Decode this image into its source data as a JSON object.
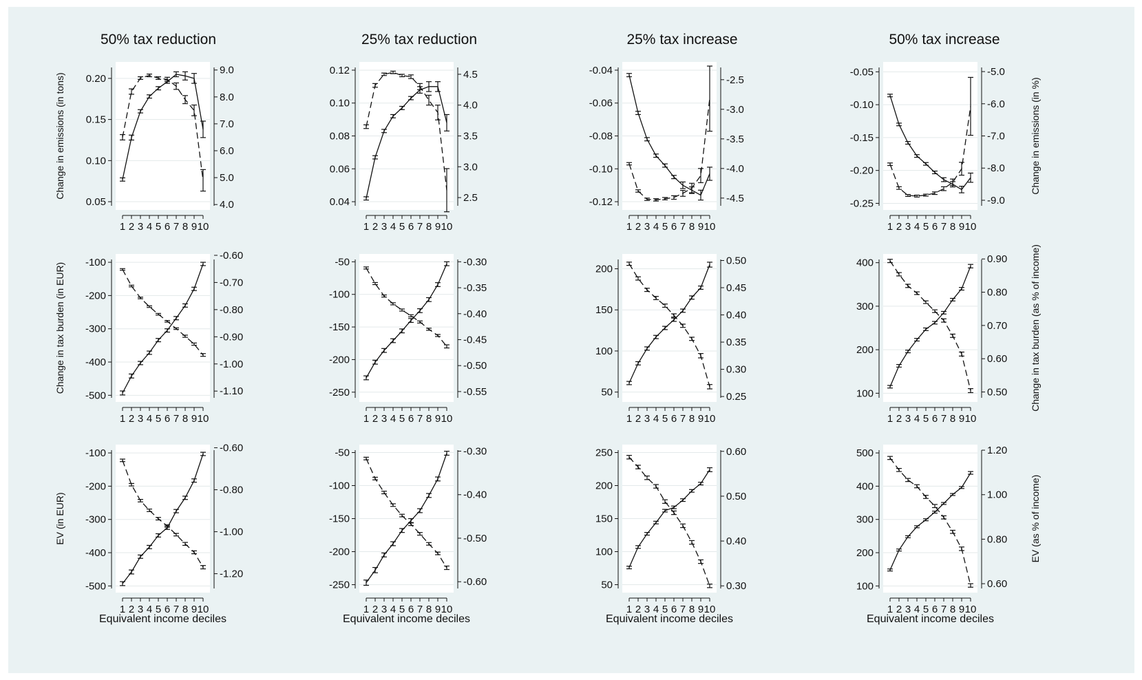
{
  "chart_data": {
    "type": "line",
    "columns": [
      "50% tax reduction",
      "25% tax reduction",
      "25% tax increase",
      "50% tax increase"
    ],
    "x": [
      1,
      2,
      3,
      4,
      5,
      6,
      7,
      8,
      9,
      10
    ],
    "xlabel": "Equivalent income deciles",
    "row_labels": {
      "left": [
        "Change in emissions (in tons)",
        "Change in tax burden (in EUR)",
        "EV (in EUR)"
      ],
      "right": [
        "Change in emissions (in %)",
        "Change in tax burden (as % of income)",
        "EV (as % of income)"
      ]
    },
    "line_styles": {
      "solid": "left axis",
      "dashed": "right axis"
    },
    "panels": [
      [
        {
          "left": {
            "ticks": [
              "0.05",
              "0.10",
              "0.15",
              "0.20"
            ],
            "ylim": [
              0.04,
              0.22
            ]
          },
          "right": {
            "ticks": [
              "4.0",
              "5.0",
              "6.0",
              "7.0",
              "8.0",
              "9.0"
            ],
            "ylim": [
              3.8,
              9.3
            ]
          },
          "solid": [
            0.077,
            0.128,
            0.16,
            0.178,
            0.188,
            0.196,
            0.205,
            0.203,
            0.2,
            0.138
          ],
          "dashed": [
            6.5,
            8.2,
            8.7,
            8.8,
            8.7,
            8.65,
            8.4,
            7.9,
            7.5,
            4.9
          ],
          "solid_err": [
            0.002,
            0.003,
            0.002,
            0.002,
            0.002,
            0.002,
            0.003,
            0.005,
            0.006,
            0.01
          ],
          "dashed_err": [
            0.1,
            0.1,
            0.05,
            0.05,
            0.05,
            0.08,
            0.12,
            0.15,
            0.2,
            0.4
          ]
        },
        {
          "left": {
            "ticks": [
              "0.04",
              "0.06",
              "0.08",
              "0.10",
              "0.12"
            ],
            "ylim": [
              0.035,
              0.125
            ]
          },
          "right": {
            "ticks": [
              "2.5",
              "3.0",
              "3.5",
              "4.0",
              "4.5"
            ],
            "ylim": [
              2.3,
              4.7
            ]
          },
          "solid": [
            0.042,
            0.067,
            0.083,
            0.092,
            0.097,
            0.103,
            0.108,
            0.11,
            0.11,
            0.088
          ],
          "dashed": [
            3.65,
            4.32,
            4.5,
            4.53,
            4.48,
            4.46,
            4.3,
            4.08,
            3.88,
            2.62
          ],
          "solid_err": [
            0.001,
            0.001,
            0.001,
            0.001,
            0.001,
            0.001,
            0.002,
            0.003,
            0.003,
            0.005
          ],
          "dashed_err": [
            0.03,
            0.03,
            0.02,
            0.02,
            0.02,
            0.03,
            0.05,
            0.08,
            0.12,
            0.35
          ]
        },
        {
          "left": {
            "ticks": [
              "-0.12",
              "-0.10",
              "-0.08",
              "-0.06",
              "-0.04"
            ],
            "ylim": [
              -0.125,
              -0.035
            ]
          },
          "right": {
            "ticks": [
              "-4.5",
              "-4.0",
              "-3.5",
              "-3.0",
              "-2.5"
            ],
            "ylim": [
              -4.7,
              -2.2
            ]
          },
          "solid": [
            -0.043,
            -0.066,
            -0.082,
            -0.092,
            -0.098,
            -0.105,
            -0.11,
            -0.113,
            -0.116,
            -0.103
          ],
          "dashed": [
            -3.92,
            -4.38,
            -4.52,
            -4.53,
            -4.51,
            -4.49,
            -4.42,
            -4.33,
            -4.12,
            -2.82
          ],
          "solid_err": [
            0.001,
            0.001,
            0.001,
            0.001,
            0.001,
            0.001,
            0.002,
            0.002,
            0.003,
            0.004
          ],
          "dashed_err": [
            0.02,
            0.02,
            0.02,
            0.02,
            0.02,
            0.03,
            0.05,
            0.08,
            0.12,
            0.55
          ]
        },
        {
          "left": {
            "ticks": [
              "-0.25",
              "-0.20",
              "-0.15",
              "-0.10",
              "-0.05"
            ],
            "ylim": [
              -0.26,
              -0.035
            ]
          },
          "right": {
            "ticks": [
              "-9.0",
              "-8.0",
              "-7.0",
              "-6.0",
              "-5.0"
            ],
            "ylim": [
              -9.3,
              -4.7
            ]
          },
          "solid": [
            -0.086,
            -0.13,
            -0.158,
            -0.178,
            -0.19,
            -0.203,
            -0.214,
            -0.221,
            -0.229,
            -0.211
          ],
          "dashed": [
            -7.88,
            -8.62,
            -8.85,
            -8.87,
            -8.84,
            -8.78,
            -8.64,
            -8.44,
            -8.02,
            -6.08
          ],
          "solid_err": [
            0.002,
            0.002,
            0.002,
            0.002,
            0.002,
            0.002,
            0.003,
            0.004,
            0.005,
            0.007
          ],
          "dashed_err": [
            0.04,
            0.04,
            0.03,
            0.03,
            0.03,
            0.04,
            0.06,
            0.1,
            0.2,
            0.9
          ]
        }
      ],
      [
        {
          "left": {
            "ticks": [
              "-500",
              "-400",
              "-300",
              "-200",
              "-100"
            ],
            "ylim": [
              -520,
              -75
            ]
          },
          "right": {
            "ticks": [
              "-1.10",
              "-1.00",
              "-0.90",
              "-0.80",
              "-0.70",
              "-0.60"
            ],
            "ylim": [
              -1.14,
              -0.595
            ]
          },
          "solid": [
            -493,
            -442,
            -403,
            -372,
            -334,
            -305,
            -268,
            -230,
            -180,
            -105
          ],
          "dashed": [
            -0.652,
            -0.713,
            -0.757,
            -0.789,
            -0.817,
            -0.843,
            -0.87,
            -0.898,
            -0.927,
            -0.967
          ],
          "solid_err": [
            6,
            6,
            5,
            5,
            5,
            5,
            5,
            5,
            5,
            5
          ],
          "dashed_err": [
            0.003,
            0.003,
            0.003,
            0.003,
            0.003,
            0.003,
            0.003,
            0.004,
            0.004,
            0.005
          ]
        },
        {
          "left": {
            "ticks": [
              "-250",
              "-200",
              "-150",
              "-100",
              "-50"
            ],
            "ylim": [
              -265,
              -38
            ]
          },
          "right": {
            "ticks": [
              "-0.55",
              "-0.50",
              "-0.45",
              "-0.40",
              "-0.35",
              "-0.30"
            ],
            "ylim": [
              -0.57,
              -0.285
            ]
          },
          "solid": [
            -228,
            -204,
            -186,
            -171,
            -156,
            -140,
            -125,
            -108,
            -85,
            -53
          ],
          "dashed": [
            -0.312,
            -0.342,
            -0.366,
            -0.381,
            -0.393,
            -0.404,
            -0.416,
            -0.43,
            -0.442,
            -0.463
          ],
          "solid_err": [
            3,
            3,
            3,
            3,
            3,
            3,
            3,
            3,
            3,
            3
          ],
          "dashed_err": [
            0.002,
            0.002,
            0.002,
            0.002,
            0.002,
            0.002,
            0.002,
            0.002,
            0.002,
            0.003
          ]
        },
        {
          "left": {
            "ticks": [
              "50",
              "100",
              "150",
              "200"
            ],
            "ylim": [
              38,
              218
            ]
          },
          "right": {
            "ticks": [
              "0.25",
              "0.30",
              "0.35",
              "0.40",
              "0.45",
              "0.50"
            ],
            "ylim": [
              0.24,
              0.512
            ]
          },
          "solid": [
            61,
            85,
            103,
            117,
            128,
            138,
            149,
            165,
            177,
            205
          ],
          "dashed": [
            0.494,
            0.467,
            0.446,
            0.431,
            0.417,
            0.399,
            0.38,
            0.356,
            0.325,
            0.268
          ],
          "solid_err": [
            2,
            2,
            2,
            2,
            2,
            2,
            2,
            2,
            2,
            3
          ],
          "dashed_err": [
            0.003,
            0.003,
            0.003,
            0.003,
            0.003,
            0.003,
            0.003,
            0.003,
            0.004,
            0.004
          ]
        },
        {
          "left": {
            "ticks": [
              "100",
              "200",
              "300",
              "400"
            ],
            "ylim": [
              80,
              420
            ]
          },
          "right": {
            "ticks": [
              "0.50",
              "0.60",
              "0.70",
              "0.80",
              "0.90"
            ],
            "ylim": [
              0.47,
              0.915
            ]
          },
          "solid": [
            115,
            163,
            196,
            223,
            247,
            262,
            285,
            315,
            340,
            392
          ],
          "dashed": [
            0.894,
            0.854,
            0.819,
            0.797,
            0.77,
            0.743,
            0.715,
            0.669,
            0.614,
            0.504
          ],
          "solid_err": [
            3,
            3,
            3,
            3,
            3,
            3,
            3,
            3,
            3,
            4
          ],
          "dashed_err": [
            0.005,
            0.005,
            0.005,
            0.004,
            0.004,
            0.004,
            0.005,
            0.005,
            0.006,
            0.006
          ]
        }
      ],
      [
        {
          "left": {
            "ticks": [
              "-500",
              "-400",
              "-300",
              "-200",
              "-100"
            ],
            "ylim": [
              -520,
              -75
            ]
          },
          "right": {
            "ticks": [
              "-1.20",
              "-1.00",
              "-0.80",
              "-0.60"
            ],
            "ylim": [
              -1.29,
              -0.585
            ]
          },
          "solid": [
            -493,
            -458,
            -412,
            -383,
            -348,
            -325,
            -275,
            -235,
            -183,
            -103
          ],
          "dashed": [
            -0.66,
            -0.776,
            -0.852,
            -0.898,
            -0.938,
            -0.973,
            -1.014,
            -1.058,
            -1.098,
            -1.169
          ],
          "solid_err": [
            6,
            6,
            5,
            5,
            5,
            5,
            5,
            5,
            5,
            5
          ],
          "dashed_err": [
            0.006,
            0.006,
            0.006,
            0.006,
            0.006,
            0.006,
            0.006,
            0.007,
            0.007,
            0.008
          ]
        },
        {
          "left": {
            "ticks": [
              "-250",
              "-200",
              "-150",
              "-100",
              "-50"
            ],
            "ylim": [
              -262,
              -38
            ]
          },
          "right": {
            "ticks": [
              "-0.60",
              "-0.50",
              "-0.40",
              "-0.30"
            ],
            "ylim": [
              -0.625,
              -0.285
            ]
          },
          "solid": [
            -247,
            -228,
            -205,
            -188,
            -168,
            -153,
            -138,
            -115,
            -90,
            -51
          ],
          "dashed": [
            -0.317,
            -0.363,
            -0.395,
            -0.424,
            -0.448,
            -0.468,
            -0.49,
            -0.513,
            -0.535,
            -0.568
          ],
          "solid_err": [
            4,
            4,
            3,
            3,
            3,
            3,
            3,
            3,
            3,
            3
          ],
          "dashed_err": [
            0.003,
            0.003,
            0.003,
            0.003,
            0.003,
            0.003,
            0.003,
            0.003,
            0.003,
            0.004
          ]
        },
        {
          "left": {
            "ticks": [
              "50",
              "100",
              "150",
              "200",
              "250"
            ],
            "ylim": [
              38,
              262
            ]
          },
          "right": {
            "ticks": [
              "0.30",
              "0.40",
              "0.50",
              "0.60"
            ],
            "ylim": [
              0.285,
              0.615
            ]
          },
          "solid": [
            76,
            107,
            127,
            144,
            162,
            167,
            178,
            192,
            203,
            224
          ],
          "dashed": [
            0.587,
            0.565,
            0.541,
            0.522,
            0.488,
            0.463,
            0.434,
            0.397,
            0.354,
            0.3
          ],
          "solid_err": [
            2,
            2,
            2,
            2,
            2,
            2,
            2,
            2,
            2,
            3
          ],
          "dashed_err": [
            0.004,
            0.004,
            0.004,
            0.004,
            0.004,
            0.004,
            0.004,
            0.004,
            0.004,
            0.004
          ]
        },
        {
          "left": {
            "ticks": [
              "100",
              "200",
              "300",
              "400",
              "500"
            ],
            "ylim": [
              80,
              525
            ]
          },
          "right": {
            "ticks": [
              "0.60",
              "0.80",
              "1.00",
              "1.20"
            ],
            "ylim": [
              0.56,
              1.225
            ]
          },
          "solid": [
            148,
            208,
            248,
            278,
            299,
            322,
            348,
            375,
            396,
            440
          ],
          "dashed": [
            1.165,
            1.111,
            1.066,
            1.038,
            0.99,
            0.949,
            0.898,
            0.833,
            0.757,
            0.592
          ],
          "solid_err": [
            3,
            3,
            3,
            3,
            3,
            3,
            3,
            3,
            3,
            4
          ],
          "dashed_err": [
            0.007,
            0.007,
            0.007,
            0.007,
            0.007,
            0.007,
            0.007,
            0.007,
            0.008,
            0.008
          ]
        }
      ]
    ]
  }
}
